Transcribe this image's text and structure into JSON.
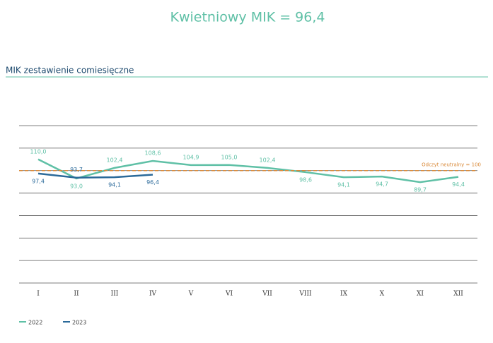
{
  "chart_data": {
    "type": "line",
    "title": "Kwietniowy MIK = 96,4",
    "subtitle": "MIK zestawienie comiesięczne",
    "categories": [
      "I",
      "II",
      "III",
      "IV",
      "V",
      "VI",
      "VII",
      "VIII",
      "IX",
      "X",
      "XI",
      "XII"
    ],
    "series": [
      {
        "name": "2022",
        "color": "#5fc0a6",
        "values": [
          110.0,
          93.0,
          102.4,
          108.6,
          104.9,
          105.0,
          102.4,
          98.6,
          94.1,
          94.7,
          89.7,
          94.4
        ],
        "value_labels": [
          "110,0",
          "93,0",
          "102,4",
          "108,6",
          "104,9",
          "105,0",
          "102,4",
          "98,6",
          "94,1",
          "94,7",
          "89,7",
          "94,4"
        ]
      },
      {
        "name": "2023",
        "color": "#2b6a9a",
        "values": [
          97.4,
          93.7,
          94.1,
          96.4,
          null,
          null,
          null,
          null,
          null,
          null,
          null,
          null
        ],
        "value_labels": [
          "97,4",
          "93,7",
          "94,1",
          "96,4",
          null,
          null,
          null,
          null,
          null,
          null,
          null,
          null
        ]
      }
    ],
    "reference_line": {
      "value": 100,
      "label": "Odczyt neutralny = 100",
      "color": "#d98a3a"
    },
    "ylim": [
      0,
      140
    ],
    "yticks": [
      0,
      20,
      40,
      60,
      80,
      100,
      120,
      140
    ],
    "grid": true,
    "legend": "bottom-left"
  }
}
